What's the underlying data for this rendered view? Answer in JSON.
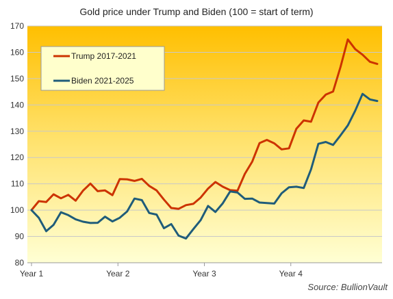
{
  "chart_data": {
    "type": "line",
    "title": "Gold price under Trump and Biden (100 = start of term)",
    "xlabel": "",
    "ylabel": "",
    "x_ticks": [
      "Year 1",
      "Year 2",
      "Year 3",
      "Year 4"
    ],
    "ylim": [
      80,
      170
    ],
    "yticks": [
      80,
      90,
      100,
      110,
      120,
      130,
      140,
      150,
      160,
      170
    ],
    "grid": true,
    "legend_position": "top-left",
    "source": "Source: BullionVault",
    "series": [
      {
        "name": "Trump 2017-2021",
        "color": "#cc3300",
        "values": [
          100,
          103.4,
          103.1,
          106,
          104.5,
          105.8,
          103.6,
          107.4,
          110.1,
          107.2,
          107.5,
          105.7,
          111.8,
          111.7,
          111.1,
          111.9,
          109.2,
          107.5,
          104,
          100.8,
          100.5,
          101.9,
          102.4,
          104.8,
          108.2,
          110.7,
          108.9,
          107.6,
          107.4,
          113.8,
          118.4,
          125.5,
          126.7,
          125.4,
          123.1,
          123.5,
          130.9,
          134.1,
          133.6,
          140.9,
          143.9,
          145.1,
          154.4,
          164.9,
          161.2,
          159.1,
          156.4,
          155.6
        ]
      },
      {
        "name": "Biden 2021-2025",
        "color": "#1f5c7a",
        "values": [
          100,
          97.1,
          92,
          94.4,
          99.2,
          98.1,
          96.5,
          95.6,
          95.1,
          95.2,
          97.5,
          95.7,
          97.1,
          99.5,
          104.4,
          103.8,
          98.9,
          98.3,
          93.1,
          94.7,
          90.3,
          89.2,
          92.8,
          96.2,
          101.6,
          99.3,
          102.6,
          107.1,
          106.7,
          104.3,
          104.4,
          102.9,
          102.7,
          102.5,
          106.4,
          108.7,
          108.9,
          108.4,
          115.5,
          125.2,
          125.9,
          124.8,
          128.4,
          132.2,
          137.8,
          144.2,
          142.1,
          141.5
        ]
      }
    ]
  }
}
